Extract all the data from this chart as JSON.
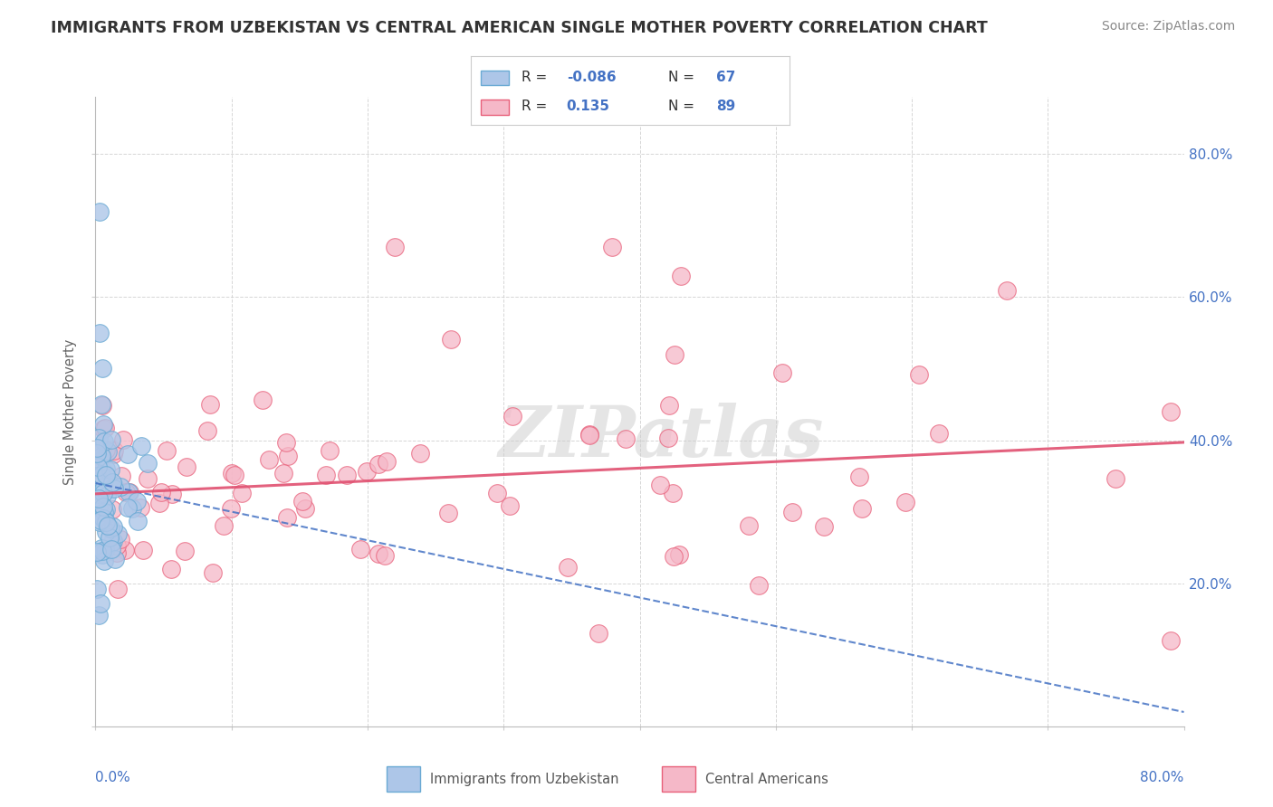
{
  "title": "IMMIGRANTS FROM UZBEKISTAN VS CENTRAL AMERICAN SINGLE MOTHER POVERTY CORRELATION CHART",
  "source": "Source: ZipAtlas.com",
  "ylabel": "Single Mother Poverty",
  "blue_R": -0.086,
  "blue_N": 67,
  "pink_R": 0.135,
  "pink_N": 89,
  "blue_color": "#adc6e8",
  "pink_color": "#f5b8c8",
  "blue_edge_color": "#6aaad4",
  "pink_edge_color": "#e8607a",
  "blue_trend_color": "#4472c4",
  "pink_trend_color": "#e05070",
  "text_color": "#4472c4",
  "label_color": "#444444",
  "watermark": "ZIPatlas",
  "xlim": [
    0.0,
    0.8
  ],
  "ylim": [
    0.0,
    0.88
  ],
  "ytick_values": [
    0.0,
    0.2,
    0.4,
    0.6,
    0.8
  ],
  "ytick_labels": [
    "",
    "20.0%",
    "40.0%",
    "60.0%",
    "80.0%"
  ],
  "xtick_values": [
    0.0,
    0.1,
    0.2,
    0.3,
    0.4,
    0.5,
    0.6,
    0.7,
    0.8
  ],
  "grid_color": "#cccccc",
  "grid_style": "--"
}
